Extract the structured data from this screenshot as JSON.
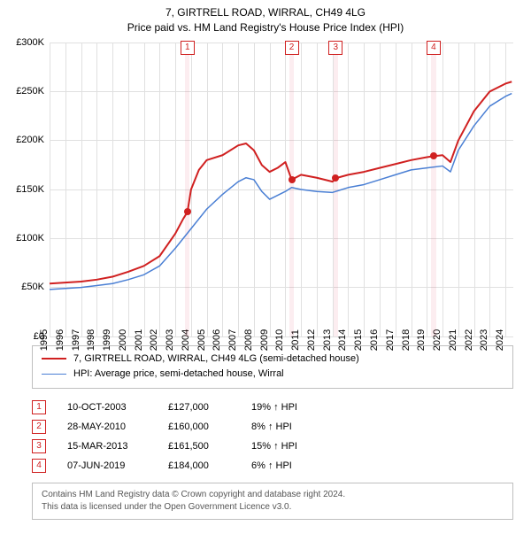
{
  "title": {
    "line1": "7, GIRTRELL ROAD, WIRRAL, CH49 4LG",
    "line2": "Price paid vs. HM Land Registry's House Price Index (HPI)"
  },
  "chart": {
    "type": "line",
    "background_color": "#ffffff",
    "grid_color": "#e0e0e0",
    "axis_color": "#000000",
    "label_fontsize": 11,
    "x": {
      "min": 1995,
      "max": 2024.5,
      "ticks": [
        1995,
        1996,
        1997,
        1998,
        1999,
        2000,
        2001,
        2002,
        2003,
        2004,
        2005,
        2006,
        2007,
        2008,
        2009,
        2010,
        2011,
        2012,
        2013,
        2014,
        2015,
        2016,
        2017,
        2018,
        2019,
        2020,
        2021,
        2022,
        2023,
        2024
      ]
    },
    "y": {
      "min": 0,
      "max": 300000,
      "ticks": [
        {
          "v": 0,
          "label": "£0"
        },
        {
          "v": 50000,
          "label": "£50K"
        },
        {
          "v": 100000,
          "label": "£100K"
        },
        {
          "v": 150000,
          "label": "£150K"
        },
        {
          "v": 200000,
          "label": "£200K"
        },
        {
          "v": 250000,
          "label": "£250K"
        },
        {
          "v": 300000,
          "label": "£300K"
        }
      ]
    },
    "series": [
      {
        "name": "7, GIRTRELL ROAD, WIRRAL, CH49 4LG (semi-detached house)",
        "color": "#d02020",
        "line_width": 2,
        "data": [
          [
            1995,
            54000
          ],
          [
            1996,
            55000
          ],
          [
            1997,
            56000
          ],
          [
            1998,
            58000
          ],
          [
            1999,
            61000
          ],
          [
            2000,
            66000
          ],
          [
            2001,
            72000
          ],
          [
            2002,
            82000
          ],
          [
            2003,
            105000
          ],
          [
            2003.5,
            120000
          ],
          [
            2003.77,
            127000
          ],
          [
            2004,
            150000
          ],
          [
            2004.5,
            170000
          ],
          [
            2005,
            180000
          ],
          [
            2006,
            185000
          ],
          [
            2007,
            195000
          ],
          [
            2007.5,
            197000
          ],
          [
            2008,
            190000
          ],
          [
            2008.5,
            175000
          ],
          [
            2009,
            168000
          ],
          [
            2009.5,
            172000
          ],
          [
            2010,
            178000
          ],
          [
            2010.4,
            160000
          ],
          [
            2011,
            165000
          ],
          [
            2012,
            162000
          ],
          [
            2013,
            158000
          ],
          [
            2013.2,
            161500
          ],
          [
            2014,
            165000
          ],
          [
            2015,
            168000
          ],
          [
            2016,
            172000
          ],
          [
            2017,
            176000
          ],
          [
            2018,
            180000
          ],
          [
            2019,
            183000
          ],
          [
            2019.43,
            184000
          ],
          [
            2020,
            185000
          ],
          [
            2020.5,
            178000
          ],
          [
            2021,
            200000
          ],
          [
            2022,
            230000
          ],
          [
            2023,
            250000
          ],
          [
            2024,
            258000
          ],
          [
            2024.4,
            260000
          ]
        ]
      },
      {
        "name": "HPI: Average price, semi-detached house, Wirral",
        "color": "#4a7fd4",
        "line_width": 1.5,
        "data": [
          [
            1995,
            48000
          ],
          [
            1996,
            49000
          ],
          [
            1997,
            50000
          ],
          [
            1998,
            52000
          ],
          [
            1999,
            54000
          ],
          [
            2000,
            58000
          ],
          [
            2001,
            63000
          ],
          [
            2002,
            72000
          ],
          [
            2003,
            90000
          ],
          [
            2004,
            110000
          ],
          [
            2005,
            130000
          ],
          [
            2006,
            145000
          ],
          [
            2007,
            158000
          ],
          [
            2007.5,
            162000
          ],
          [
            2008,
            160000
          ],
          [
            2008.5,
            148000
          ],
          [
            2009,
            140000
          ],
          [
            2010,
            148000
          ],
          [
            2010.4,
            152000
          ],
          [
            2011,
            150000
          ],
          [
            2012,
            148000
          ],
          [
            2013,
            147000
          ],
          [
            2014,
            152000
          ],
          [
            2015,
            155000
          ],
          [
            2016,
            160000
          ],
          [
            2017,
            165000
          ],
          [
            2018,
            170000
          ],
          [
            2019,
            172000
          ],
          [
            2020,
            174000
          ],
          [
            2020.5,
            168000
          ],
          [
            2021,
            190000
          ],
          [
            2022,
            215000
          ],
          [
            2023,
            235000
          ],
          [
            2024,
            245000
          ],
          [
            2024.4,
            248000
          ]
        ]
      }
    ],
    "markers": [
      {
        "n": 1,
        "x": 2003.77,
        "y": 127000,
        "band_width_years": 0.3
      },
      {
        "n": 2,
        "x": 2010.4,
        "y": 160000,
        "band_width_years": 0.3
      },
      {
        "n": 3,
        "x": 2013.2,
        "y": 161500,
        "band_width_years": 0.3
      },
      {
        "n": 4,
        "x": 2019.43,
        "y": 184000,
        "band_width_years": 0.3
      }
    ]
  },
  "legend": {
    "border_color": "#bfbfbf"
  },
  "sales": [
    {
      "n": 1,
      "date": "10-OCT-2003",
      "price": "£127,000",
      "diff": "19% ↑ HPI"
    },
    {
      "n": 2,
      "date": "28-MAY-2010",
      "price": "£160,000",
      "diff": "8% ↑ HPI"
    },
    {
      "n": 3,
      "date": "15-MAR-2013",
      "price": "£161,500",
      "diff": "15% ↑ HPI"
    },
    {
      "n": 4,
      "date": "07-JUN-2019",
      "price": "£184,000",
      "diff": "6% ↑ HPI"
    }
  ],
  "footer": {
    "line1": "Contains HM Land Registry data © Crown copyright and database right 2024.",
    "line2": "This data is licensed under the Open Government Licence v3.0."
  }
}
